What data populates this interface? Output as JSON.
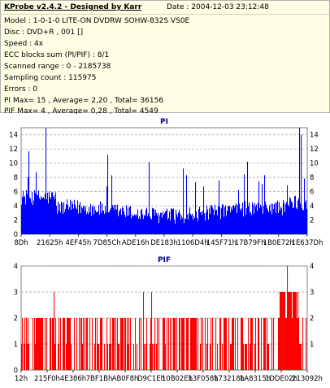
{
  "info": {
    "title": "KProbe v2.4.2 - Designed by Karr",
    "date": "Date : 2004-12-03 23:12:48",
    "lines": [
      "Model : 1-0-1-0 LITE-ON DVDRW SOHW-832S  VS0E",
      "Disc : DVD+R , 001 []",
      "Speed : 4x",
      "ECC blocks sum (PI/PIF) : 8/1",
      "Scanned range : 0 - 2185738",
      "Sampling count : 115975",
      "Errors : 0",
      "PI Max= 15 , Average= 2,20 , Total= 36156",
      "PIF Max= 4 , Average= 0,28 , Total= 4549"
    ]
  },
  "chart_data": [
    {
      "type": "bar",
      "title": "PI",
      "color": "#0000ff",
      "title_color": "#00008b",
      "ylim": [
        0,
        15
      ],
      "yticks": [
        0,
        2,
        4,
        6,
        8,
        10,
        12,
        14
      ],
      "right_yticks": [
        2,
        4,
        6,
        8,
        10,
        12,
        14
      ],
      "xticks": [
        "8Dh",
        "21625h",
        "4EF45h",
        "7D85Ch",
        "ADE16h",
        "DE183h",
        "1106D4h",
        "145F71h",
        "17B79Fh",
        "1B0E72h",
        "1E637Dh"
      ],
      "grid": true,
      "max": 15,
      "average": 2.2
    },
    {
      "type": "bar",
      "title": "PIF",
      "color": "#ff0000",
      "title_color": "#00008b",
      "ylim": [
        0,
        4
      ],
      "yticks": [
        0,
        1,
        2,
        3,
        4
      ],
      "right_yticks": [
        1,
        2,
        3,
        4
      ],
      "xticks": [
        "12h",
        "215F0h",
        "4E386h",
        "7BF1Bh",
        "AB0F8h",
        "D9C1Eh",
        "10B02Eh",
        "13F058h",
        "173218h",
        "1A8315h",
        "1DDE02h",
        "213092h"
      ],
      "grid": true,
      "max": 4,
      "average": 0.28
    }
  ]
}
